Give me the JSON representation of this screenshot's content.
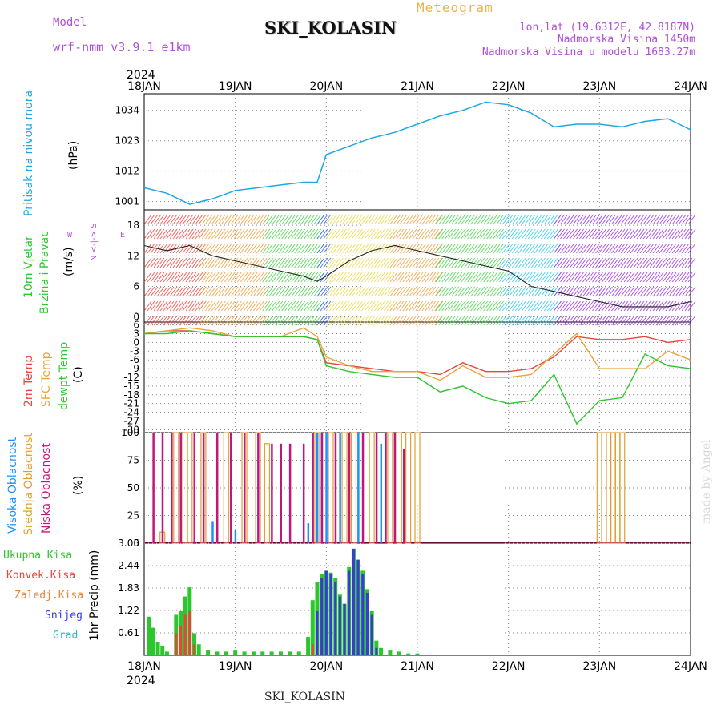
{
  "header": {
    "model_label": "Model",
    "model_name": "wrf-nmm_v3.9.1 e1km",
    "station": "SKI_KOLASIN",
    "meteogram": "Meteogram",
    "lonlat": "lon,lat (19.6312E, 42.8187N)",
    "altitude": "Nadmorska Visina 1450m",
    "model_altitude": "Nadmorska Visina u modelu 1683.27m"
  },
  "footer": {
    "station": "SKI_KOLASIN",
    "credit": "made by Angel"
  },
  "time_axis": {
    "year": "2024",
    "days": [
      "18JAN",
      "19JAN",
      "20JAN",
      "21JAN",
      "22JAN",
      "23JAN",
      "24JAN"
    ]
  },
  "panel_labels": {
    "pressure": [
      "Pritisak na nivou mora",
      "(hPa)"
    ],
    "wind": [
      "10m Vjetar",
      "Brzina i Pravac",
      "(m/s)"
    ],
    "wind_compass": [
      "N",
      "<-|->",
      "S",
      "W",
      "E"
    ],
    "temp": [
      "2m Temp",
      "SFC Temp",
      "dewpt Temp",
      "(C)"
    ],
    "cloud": [
      "Visoka Oblacnost",
      "Srednja Oblacnost",
      "Niska Oblacnost",
      "(%)"
    ],
    "precip_unit": "1hr Precip (mm)",
    "precip_legend": [
      "Ukupna Kisa",
      "Konvek.Kisa",
      "Zaledj.Kisa",
      "Snijeg",
      "Grad"
    ]
  },
  "colors": {
    "pressure": "#1ea7e6",
    "temp2m": "#e8453c",
    "sfc": "#e8a33c",
    "dewpt": "#2cc72c",
    "high_cloud": "#1e90ff",
    "mid_cloud": "#e0a030",
    "low_cloud": "#c0187a",
    "total_rain": "#2cc72c",
    "conv_rain": "#e8453c",
    "frz_rain": "#f08030",
    "snow": "#3a3ad8",
    "hail": "#20c0c0"
  },
  "chart_data": [
    {
      "type": "line",
      "title": "Pritisak na nivou mora",
      "ylabel": "(hPa)",
      "yticks": [
        "1001",
        "1012",
        "1023",
        "1034"
      ],
      "ylim": [
        998,
        1040
      ],
      "x": [
        0,
        0.25,
        0.5,
        0.75,
        1,
        1.25,
        1.5,
        1.75,
        1.9,
        2,
        2.25,
        2.5,
        2.75,
        3,
        3.25,
        3.5,
        3.75,
        4,
        4.25,
        4.5,
        4.75,
        5,
        5.25,
        5.5,
        5.75,
        6
      ],
      "values": [
        1006,
        1004,
        1000,
        1002,
        1005,
        1006,
        1007,
        1008,
        1008,
        1018,
        1021,
        1024,
        1026,
        1029,
        1032,
        1034,
        1037,
        1036,
        1033,
        1028,
        1029,
        1029,
        1028,
        1030,
        1031,
        1027
      ]
    },
    {
      "type": "line",
      "title": "10m Vjetar Brzina i Pravac",
      "ylabel": "(m/s)",
      "yticks": [
        "0",
        "6",
        "12",
        "18"
      ],
      "ylim": [
        -1,
        21
      ],
      "x": [
        0,
        0.25,
        0.5,
        0.75,
        1,
        1.25,
        1.5,
        1.75,
        1.9,
        2,
        2.25,
        2.5,
        2.75,
        3,
        3.25,
        3.5,
        3.75,
        4,
        4.25,
        4.5,
        4.75,
        5,
        5.25,
        5.5,
        5.75,
        6
      ],
      "values": [
        14,
        13,
        14,
        12,
        11,
        10,
        9,
        8,
        7,
        8,
        11,
        13,
        14,
        13,
        12,
        11,
        10,
        9,
        6,
        5,
        4,
        3,
        2,
        2,
        2,
        3
      ],
      "direction_bands": [
        "red",
        "orange",
        "green",
        "blue",
        "yellow",
        "orange",
        "green",
        "cyan",
        "blue",
        "purple"
      ]
    },
    {
      "type": "line",
      "title": "Temperature",
      "ylabel": "(C)",
      "yticks": [
        "6",
        "3",
        "0",
        "-3",
        "-6",
        "-9",
        "-12",
        "-15",
        "-18",
        "-21",
        "-24",
        "-27",
        "-30"
      ],
      "ylim": [
        -31,
        7
      ],
      "x": [
        0,
        0.25,
        0.5,
        0.75,
        1,
        1.25,
        1.5,
        1.75,
        1.9,
        2,
        2.25,
        2.5,
        2.75,
        3,
        3.25,
        3.5,
        3.75,
        4,
        4.25,
        4.5,
        4.75,
        5,
        5.25,
        5.5,
        5.75,
        6
      ],
      "series": [
        {
          "name": "2m Temp",
          "values": [
            3,
            4,
            4,
            3,
            2,
            2,
            2,
            2,
            1,
            -7,
            -8,
            -9,
            -10,
            -10,
            -11,
            -7,
            -10,
            -10,
            -9,
            -5,
            2,
            1,
            1,
            2,
            0,
            1
          ]
        },
        {
          "name": "SFC Temp",
          "values": [
            3,
            4,
            5,
            4,
            2,
            2,
            2,
            5,
            2,
            -5,
            -8,
            -10,
            -10,
            -10,
            -13,
            -8,
            -12,
            -12,
            -11,
            -4,
            3,
            -9,
            -9,
            -9,
            -3,
            -6
          ]
        },
        {
          "name": "dewpt Temp",
          "values": [
            3,
            3,
            4,
            3,
            2,
            2,
            2,
            2,
            1,
            -8,
            -10,
            -11,
            -12,
            -12,
            -17,
            -15,
            -19,
            -21,
            -20,
            -11,
            -28,
            -20,
            -19,
            -4,
            -8,
            -9
          ]
        }
      ]
    },
    {
      "type": "bar",
      "title": "Oblacnost",
      "ylabel": "(%)",
      "yticks": [
        "0",
        "25",
        "50",
        "75",
        "100"
      ],
      "ylim": [
        0,
        100
      ],
      "series": [
        {
          "name": "Visoka Oblacnost",
          "x": [
            0.4,
            0.55,
            0.75,
            1.0,
            1.8,
            1.85,
            1.9,
            1.95,
            2.0,
            2.15,
            2.35,
            2.6
          ],
          "values": [
            8,
            15,
            20,
            12,
            18,
            100,
            100,
            100,
            100,
            100,
            100,
            90
          ]
        },
        {
          "name": "Srednja Oblacnost",
          "x": [
            0.2,
            0.35,
            0.45,
            0.5,
            0.65,
            0.9,
            1.1,
            1.25,
            1.35,
            1.9,
            2.05,
            2.2,
            2.3,
            2.5,
            2.7,
            2.8,
            2.9,
            3.0,
            5.0,
            5.05,
            5.1,
            5.15,
            5.2,
            5.25
          ],
          "values": [
            10,
            100,
            100,
            100,
            100,
            100,
            100,
            100,
            90,
            100,
            100,
            100,
            100,
            100,
            100,
            100,
            100,
            100,
            100,
            100,
            100,
            100,
            100,
            100
          ]
        },
        {
          "name": "Niska Oblacnost",
          "x": [
            0.1,
            0.2,
            0.3,
            0.4,
            0.55,
            0.65,
            0.8,
            0.95,
            1.1,
            1.25,
            1.4,
            1.5,
            1.6,
            1.75,
            1.85,
            1.95,
            2.1,
            2.25,
            2.4,
            2.55,
            2.65,
            2.75,
            2.85
          ],
          "values": [
            100,
            100,
            100,
            100,
            100,
            100,
            100,
            100,
            100,
            100,
            90,
            90,
            90,
            90,
            100,
            100,
            100,
            100,
            100,
            100,
            100,
            100,
            85
          ]
        }
      ]
    },
    {
      "type": "bar",
      "title": "1hr Precip",
      "ylabel": "1hr Precip (mm)",
      "yticks": [
        "0.61",
        "1.22",
        "1.83",
        "2.44",
        "3.05"
      ],
      "ylim": [
        0,
        3.05
      ],
      "x": [
        0.05,
        0.1,
        0.15,
        0.2,
        0.25,
        0.35,
        0.4,
        0.45,
        0.5,
        0.55,
        0.6,
        0.7,
        0.8,
        0.9,
        1.0,
        1.1,
        1.2,
        1.3,
        1.4,
        1.5,
        1.6,
        1.7,
        1.8,
        1.85,
        1.9,
        1.95,
        2.0,
        2.05,
        2.1,
        2.15,
        2.2,
        2.25,
        2.3,
        2.35,
        2.4,
        2.45,
        2.5,
        2.55,
        2.6,
        2.7,
        2.8,
        2.9,
        3.0
      ],
      "series": [
        {
          "name": "Ukupna Kisa",
          "values": [
            1.05,
            0.75,
            0.35,
            0.25,
            0.1,
            1.1,
            1.2,
            1.6,
            1.85,
            0.6,
            0.3,
            0.15,
            0.1,
            0.1,
            0.15,
            0.1,
            0.1,
            0.1,
            0.1,
            0.1,
            0.1,
            0.1,
            0.5,
            1.5,
            2.0,
            2.2,
            2.3,
            2.25,
            2.1,
            1.65,
            1.4,
            2.4,
            2.9,
            2.6,
            2.3,
            1.8,
            1.2,
            0.4,
            0.2,
            0.15,
            0.1,
            0.05,
            0.05
          ]
        },
        {
          "name": "Konvek.Kisa",
          "values": [
            0,
            0,
            0,
            0,
            0,
            0.6,
            0.8,
            1.1,
            1.2,
            0.3,
            0,
            0,
            0,
            0,
            0,
            0,
            0,
            0,
            0,
            0,
            0,
            0,
            0,
            0.3,
            0.4,
            0.2,
            0,
            0,
            0,
            0,
            0,
            0,
            0,
            0,
            0,
            0,
            0,
            0,
            0,
            0,
            0,
            0,
            0
          ]
        },
        {
          "name": "Snijeg",
          "values": [
            0,
            0,
            0,
            0,
            0,
            0,
            0,
            0,
            0,
            0,
            0,
            0,
            0,
            0,
            0,
            0,
            0,
            0,
            0,
            0,
            0,
            0,
            0,
            0,
            1.2,
            2.1,
            2.3,
            2.2,
            2.0,
            1.6,
            1.4,
            2.3,
            2.9,
            2.6,
            2.2,
            1.7,
            1.1,
            0.2,
            0,
            0,
            0,
            0,
            0
          ]
        }
      ]
    }
  ]
}
